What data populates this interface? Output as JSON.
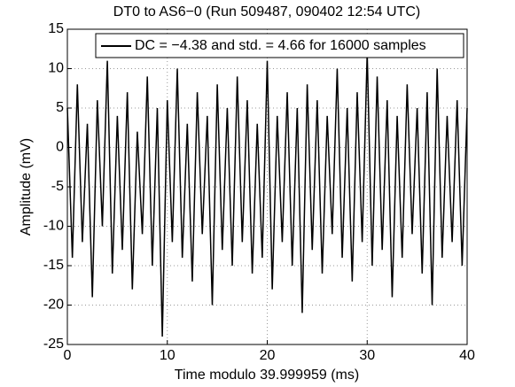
{
  "chart_data": {
    "type": "line",
    "title": "DT0 to AS6−0 (Run 509487, 090402 12:54 UTC)",
    "x_label": "Time modulo 39.999959 (ms)",
    "y_label": "Amplitude (mV)",
    "x": [
      0,
      0.5,
      1,
      1.5,
      2,
      2.5,
      3,
      3.5,
      4,
      4.5,
      5,
      5.5,
      6,
      6.5,
      7,
      7.5,
      8,
      8.5,
      9,
      9.5,
      10,
      10.5,
      11,
      11.5,
      12,
      12.5,
      13,
      13.5,
      14,
      14.5,
      15,
      15.5,
      16,
      16.5,
      17,
      17.5,
      18,
      18.5,
      19,
      19.5,
      20,
      20.5,
      21,
      21.5,
      22,
      22.5,
      23,
      23.5,
      24,
      24.5,
      25,
      25.5,
      26,
      26.5,
      27,
      27.5,
      28,
      28.5,
      29,
      29.5,
      30,
      30.5,
      31,
      31.5,
      32,
      32.5,
      33,
      33.5,
      34,
      34.5,
      35,
      35.5,
      36,
      36.5,
      37,
      37.5,
      38,
      38.5,
      39,
      39.5,
      40
    ],
    "series": [
      {
        "name": "DC = −4.38 and std. = 4.66 for 16000 samples",
        "color": "#000000",
        "values": [
          5,
          -14,
          8,
          -12,
          3,
          -19,
          6,
          -10,
          11,
          -16,
          4,
          -13,
          7,
          -18,
          2,
          -11,
          9,
          -15,
          5,
          -24,
          6,
          -12,
          10,
          -14,
          3,
          -17,
          7,
          -11,
          4,
          -20,
          8,
          -13,
          5,
          -15,
          9,
          -12,
          6,
          -16,
          3,
          -14,
          11,
          -18,
          4,
          -12,
          7,
          -15,
          5,
          -21,
          8,
          -13,
          6,
          -16,
          4,
          -11,
          10,
          -14,
          5,
          -17,
          7,
          -12,
          12,
          -15,
          9,
          -13,
          6,
          -19,
          4,
          -14,
          8,
          -11,
          5,
          -16,
          7,
          -20,
          10,
          -14,
          4,
          -12,
          6,
          -15,
          5
        ]
      }
    ],
    "xlim": [
      0,
      40
    ],
    "xticks": [
      0,
      10,
      20,
      30,
      40
    ],
    "ylim": [
      -25,
      15
    ],
    "yticks": [
      -25,
      -20,
      -15,
      -10,
      -5,
      0,
      5,
      10,
      15
    ],
    "grid": true,
    "legend": "upper right"
  }
}
